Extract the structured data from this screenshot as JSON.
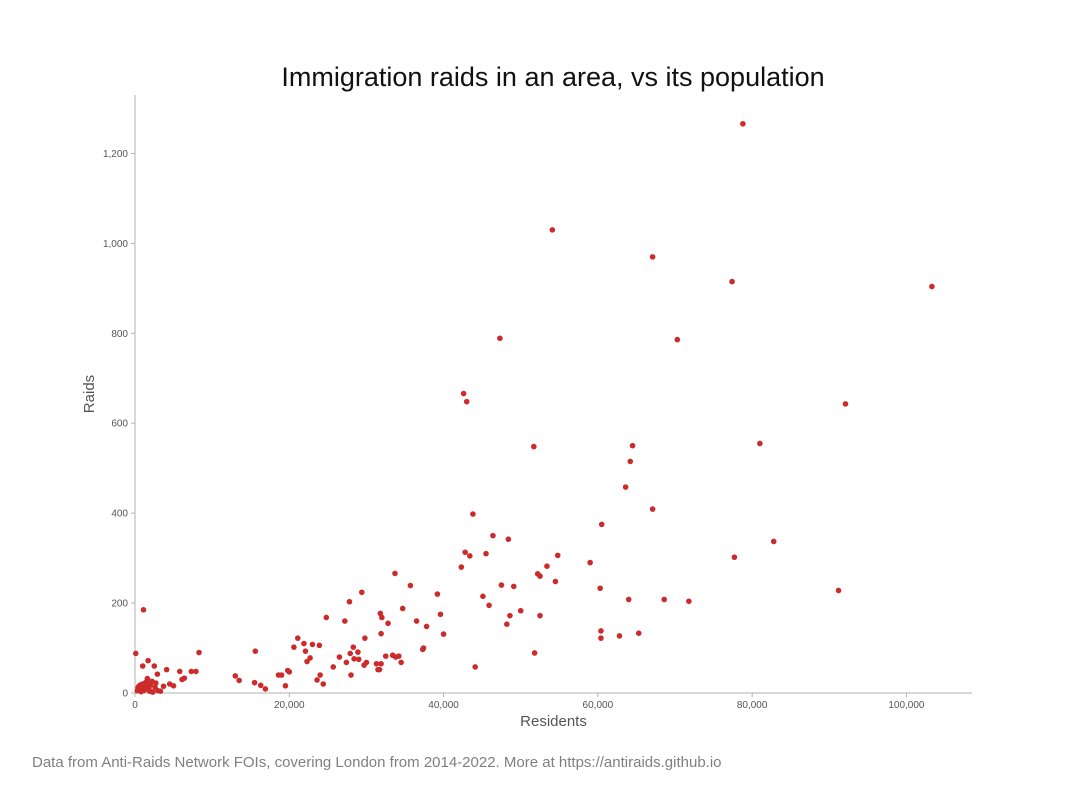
{
  "footnote": "Data from Anti-Raids Network FOIs, covering London from 2014-2022. More at https://antiraids.github.io",
  "chart_data": {
    "type": "scatter",
    "title": "Immigration raids in an area, vs its population",
    "xlabel": "Residents",
    "ylabel": "Raids",
    "xlim": [
      0,
      108500
    ],
    "ylim": [
      0,
      1330
    ],
    "xticks": [
      0,
      20000,
      40000,
      60000,
      80000,
      100000
    ],
    "xtick_labels": [
      "0",
      "20,000",
      "40,000",
      "60,000",
      "80,000",
      "100,000"
    ],
    "yticks": [
      0,
      200,
      400,
      600,
      800,
      1000,
      1200
    ],
    "ytick_labels": [
      "0",
      "200",
      "400",
      "600",
      "800",
      "1,000",
      "1,200"
    ],
    "grid": false,
    "marker_color": "#cc2b2b",
    "points": [
      [
        100,
        88
      ],
      [
        300,
        5
      ],
      [
        400,
        12
      ],
      [
        500,
        15
      ],
      [
        600,
        8
      ],
      [
        700,
        18
      ],
      [
        800,
        3
      ],
      [
        900,
        10
      ],
      [
        1000,
        60
      ],
      [
        1000,
        20
      ],
      [
        1100,
        185
      ],
      [
        1200,
        6
      ],
      [
        1300,
        22
      ],
      [
        1400,
        14
      ],
      [
        1500,
        25
      ],
      [
        1600,
        32
      ],
      [
        1700,
        72
      ],
      [
        1800,
        10
      ],
      [
        1900,
        4
      ],
      [
        2000,
        18
      ],
      [
        2200,
        26
      ],
      [
        2300,
        2
      ],
      [
        2500,
        60
      ],
      [
        2600,
        12
      ],
      [
        2700,
        22
      ],
      [
        2900,
        42
      ],
      [
        3000,
        5
      ],
      [
        3300,
        4
      ],
      [
        3700,
        15
      ],
      [
        4100,
        52
      ],
      [
        4500,
        20
      ],
      [
        5000,
        16
      ],
      [
        5800,
        48
      ],
      [
        6100,
        30
      ],
      [
        6400,
        33
      ],
      [
        7300,
        48
      ],
      [
        7900,
        48
      ],
      [
        8300,
        90
      ],
      [
        13000,
        38
      ],
      [
        13500,
        28
      ],
      [
        15500,
        23
      ],
      [
        15600,
        93
      ],
      [
        16300,
        17
      ],
      [
        16900,
        9
      ],
      [
        18600,
        40
      ],
      [
        19000,
        40
      ],
      [
        19500,
        16
      ],
      [
        19800,
        50
      ],
      [
        20000,
        47
      ],
      [
        20600,
        102
      ],
      [
        21100,
        122
      ],
      [
        21900,
        110
      ],
      [
        22100,
        93
      ],
      [
        22300,
        70
      ],
      [
        22700,
        78
      ],
      [
        23000,
        108
      ],
      [
        23600,
        29
      ],
      [
        23900,
        106
      ],
      [
        24000,
        40
      ],
      [
        24400,
        20
      ],
      [
        24800,
        168
      ],
      [
        25700,
        58
      ],
      [
        26500,
        80
      ],
      [
        27200,
        160
      ],
      [
        27400,
        68
      ],
      [
        27900,
        88
      ],
      [
        27800,
        203
      ],
      [
        28000,
        40
      ],
      [
        28300,
        102
      ],
      [
        28400,
        76
      ],
      [
        28900,
        91
      ],
      [
        29000,
        75
      ],
      [
        29400,
        224
      ],
      [
        29700,
        62
      ],
      [
        29800,
        122
      ],
      [
        30000,
        68
      ],
      [
        31300,
        65
      ],
      [
        31500,
        52
      ],
      [
        31700,
        52
      ],
      [
        31800,
        177
      ],
      [
        31900,
        65
      ],
      [
        32000,
        168
      ],
      [
        31900,
        132
      ],
      [
        32500,
        82
      ],
      [
        32800,
        155
      ],
      [
        33400,
        84
      ],
      [
        33700,
        266
      ],
      [
        33800,
        80
      ],
      [
        34200,
        82
      ],
      [
        34500,
        68
      ],
      [
        34700,
        188
      ],
      [
        35700,
        239
      ],
      [
        36500,
        160
      ],
      [
        37300,
        97
      ],
      [
        37400,
        100
      ],
      [
        37800,
        148
      ],
      [
        39200,
        220
      ],
      [
        39600,
        175
      ],
      [
        40000,
        131
      ],
      [
        42300,
        280
      ],
      [
        42600,
        666
      ],
      [
        42800,
        313
      ],
      [
        43000,
        648
      ],
      [
        43400,
        305
      ],
      [
        43800,
        398
      ],
      [
        44100,
        58
      ],
      [
        45100,
        215
      ],
      [
        45500,
        310
      ],
      [
        45900,
        195
      ],
      [
        46400,
        350
      ],
      [
        47300,
        789
      ],
      [
        47500,
        240
      ],
      [
        48200,
        153
      ],
      [
        48400,
        342
      ],
      [
        48600,
        172
      ],
      [
        49100,
        237
      ],
      [
        50000,
        183
      ],
      [
        51700,
        548
      ],
      [
        51800,
        89
      ],
      [
        52200,
        265
      ],
      [
        52500,
        260
      ],
      [
        52500,
        172
      ],
      [
        53400,
        282
      ],
      [
        54100,
        1030
      ],
      [
        54500,
        248
      ],
      [
        54800,
        306
      ],
      [
        59000,
        290
      ],
      [
        60300,
        233
      ],
      [
        60400,
        138
      ],
      [
        60400,
        122
      ],
      [
        60500,
        375
      ],
      [
        62800,
        127
      ],
      [
        63600,
        458
      ],
      [
        64000,
        208
      ],
      [
        64200,
        515
      ],
      [
        64500,
        550
      ],
      [
        65300,
        133
      ],
      [
        67100,
        970
      ],
      [
        67100,
        409
      ],
      [
        68600,
        208
      ],
      [
        70300,
        786
      ],
      [
        71800,
        204
      ],
      [
        77400,
        915
      ],
      [
        77700,
        302
      ],
      [
        78800,
        1266
      ],
      [
        81000,
        555
      ],
      [
        82800,
        337
      ],
      [
        91200,
        228
      ],
      [
        92100,
        643
      ],
      [
        103300,
        904
      ]
    ]
  }
}
